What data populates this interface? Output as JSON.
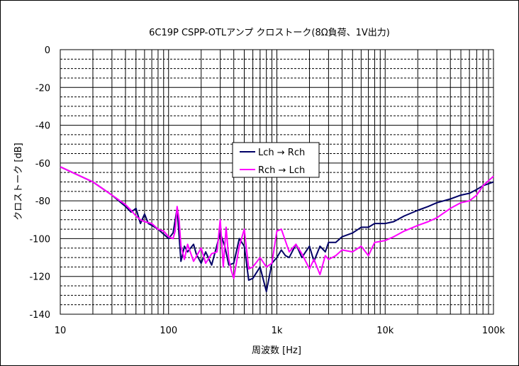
{
  "chart_data": {
    "type": "line",
    "title": "6C19P CSPP-OTLアンプ クロストーク(8Ω負荷、1V出力)",
    "xlabel": "周波数 [Hz]",
    "ylabel": "クロストーク [dB]",
    "x_scale": "log",
    "xlim": [
      10,
      100000
    ],
    "ylim": [
      -140,
      0
    ],
    "x_ticks": [
      {
        "value": 10,
        "label": "10"
      },
      {
        "value": 100,
        "label": "100"
      },
      {
        "value": 1000,
        "label": "1k"
      },
      {
        "value": 10000,
        "label": "10k"
      },
      {
        "value": 100000,
        "label": "100k"
      }
    ],
    "y_ticks": [
      {
        "value": 0,
        "label": "0"
      },
      {
        "value": -20,
        "label": "-20"
      },
      {
        "value": -40,
        "label": "-40"
      },
      {
        "value": -60,
        "label": "-60"
      },
      {
        "value": -80,
        "label": "-80"
      },
      {
        "value": -100,
        "label": "-100"
      },
      {
        "value": -120,
        "label": "-120"
      },
      {
        "value": -140,
        "label": "-140"
      }
    ],
    "y_minor_step": 5,
    "grid": true,
    "legend_position": "center",
    "series": [
      {
        "name": "Lch → Rch",
        "color": "#000066",
        "points": [
          [
            10,
            -62
          ],
          [
            20,
            -70
          ],
          [
            30,
            -77
          ],
          [
            40,
            -83
          ],
          [
            45,
            -86
          ],
          [
            50,
            -84
          ],
          [
            55,
            -92
          ],
          [
            60,
            -87
          ],
          [
            65,
            -92
          ],
          [
            70,
            -93
          ],
          [
            80,
            -95
          ],
          [
            100,
            -100
          ],
          [
            110,
            -97
          ],
          [
            120,
            -84
          ],
          [
            130,
            -112
          ],
          [
            140,
            -104
          ],
          [
            150,
            -107
          ],
          [
            170,
            -103
          ],
          [
            180,
            -108
          ],
          [
            200,
            -113
          ],
          [
            220,
            -107
          ],
          [
            250,
            -114
          ],
          [
            300,
            -97
          ],
          [
            330,
            -104
          ],
          [
            360,
            -114
          ],
          [
            400,
            -113
          ],
          [
            450,
            -100
          ],
          [
            500,
            -104
          ],
          [
            550,
            -122
          ],
          [
            600,
            -121
          ],
          [
            700,
            -115
          ],
          [
            800,
            -128
          ],
          [
            900,
            -113
          ],
          [
            1000,
            -110
          ],
          [
            1100,
            -106
          ],
          [
            1200,
            -109
          ],
          [
            1300,
            -110
          ],
          [
            1500,
            -103
          ],
          [
            1700,
            -110
          ],
          [
            2000,
            -104
          ],
          [
            2200,
            -112
          ],
          [
            2500,
            -104
          ],
          [
            2800,
            -107
          ],
          [
            3000,
            -102
          ],
          [
            3500,
            -102
          ],
          [
            4000,
            -99
          ],
          [
            5000,
            -97
          ],
          [
            6000,
            -94
          ],
          [
            7000,
            -94
          ],
          [
            8000,
            -92
          ],
          [
            10000,
            -92
          ],
          [
            12000,
            -91
          ],
          [
            15000,
            -88
          ],
          [
            20000,
            -85
          ],
          [
            25000,
            -83
          ],
          [
            30000,
            -81
          ],
          [
            40000,
            -79
          ],
          [
            50000,
            -77
          ],
          [
            60000,
            -76
          ],
          [
            70000,
            -74
          ],
          [
            80000,
            -72
          ],
          [
            100000,
            -70
          ]
        ]
      },
      {
        "name": "Rch → Lch",
        "color": "#ff00ff",
        "points": [
          [
            10,
            -62
          ],
          [
            20,
            -70
          ],
          [
            30,
            -77
          ],
          [
            40,
            -82
          ],
          [
            45,
            -85
          ],
          [
            50,
            -88
          ],
          [
            55,
            -90
          ],
          [
            60,
            -91
          ],
          [
            70,
            -92
          ],
          [
            80,
            -95
          ],
          [
            90,
            -96
          ],
          [
            100,
            -99
          ],
          [
            110,
            -100
          ],
          [
            115,
            -96
          ],
          [
            120,
            -83
          ],
          [
            125,
            -90
          ],
          [
            130,
            -104
          ],
          [
            140,
            -111
          ],
          [
            150,
            -103
          ],
          [
            170,
            -112
          ],
          [
            200,
            -105
          ],
          [
            220,
            -113
          ],
          [
            250,
            -108
          ],
          [
            280,
            -107
          ],
          [
            300,
            -90
          ],
          [
            320,
            -115
          ],
          [
            340,
            -94
          ],
          [
            360,
            -111
          ],
          [
            380,
            -117
          ],
          [
            400,
            -121
          ],
          [
            450,
            -104
          ],
          [
            500,
            -95
          ],
          [
            550,
            -116
          ],
          [
            600,
            -115
          ],
          [
            700,
            -110
          ],
          [
            800,
            -115
          ],
          [
            900,
            -113
          ],
          [
            1000,
            -96
          ],
          [
            1100,
            -95
          ],
          [
            1300,
            -107
          ],
          [
            1500,
            -103
          ],
          [
            1700,
            -108
          ],
          [
            2000,
            -116
          ],
          [
            2200,
            -111
          ],
          [
            2500,
            -119
          ],
          [
            2800,
            -109
          ],
          [
            3000,
            -111
          ],
          [
            3500,
            -109
          ],
          [
            4000,
            -106
          ],
          [
            5000,
            -107
          ],
          [
            6000,
            -104
          ],
          [
            7000,
            -109
          ],
          [
            8000,
            -102
          ],
          [
            10000,
            -101
          ],
          [
            12000,
            -99
          ],
          [
            15000,
            -96
          ],
          [
            20000,
            -93
          ],
          [
            25000,
            -91
          ],
          [
            30000,
            -89
          ],
          [
            40000,
            -84
          ],
          [
            50000,
            -81
          ],
          [
            60000,
            -80
          ],
          [
            70000,
            -77
          ],
          [
            80000,
            -72
          ],
          [
            100000,
            -67
          ]
        ]
      }
    ]
  }
}
